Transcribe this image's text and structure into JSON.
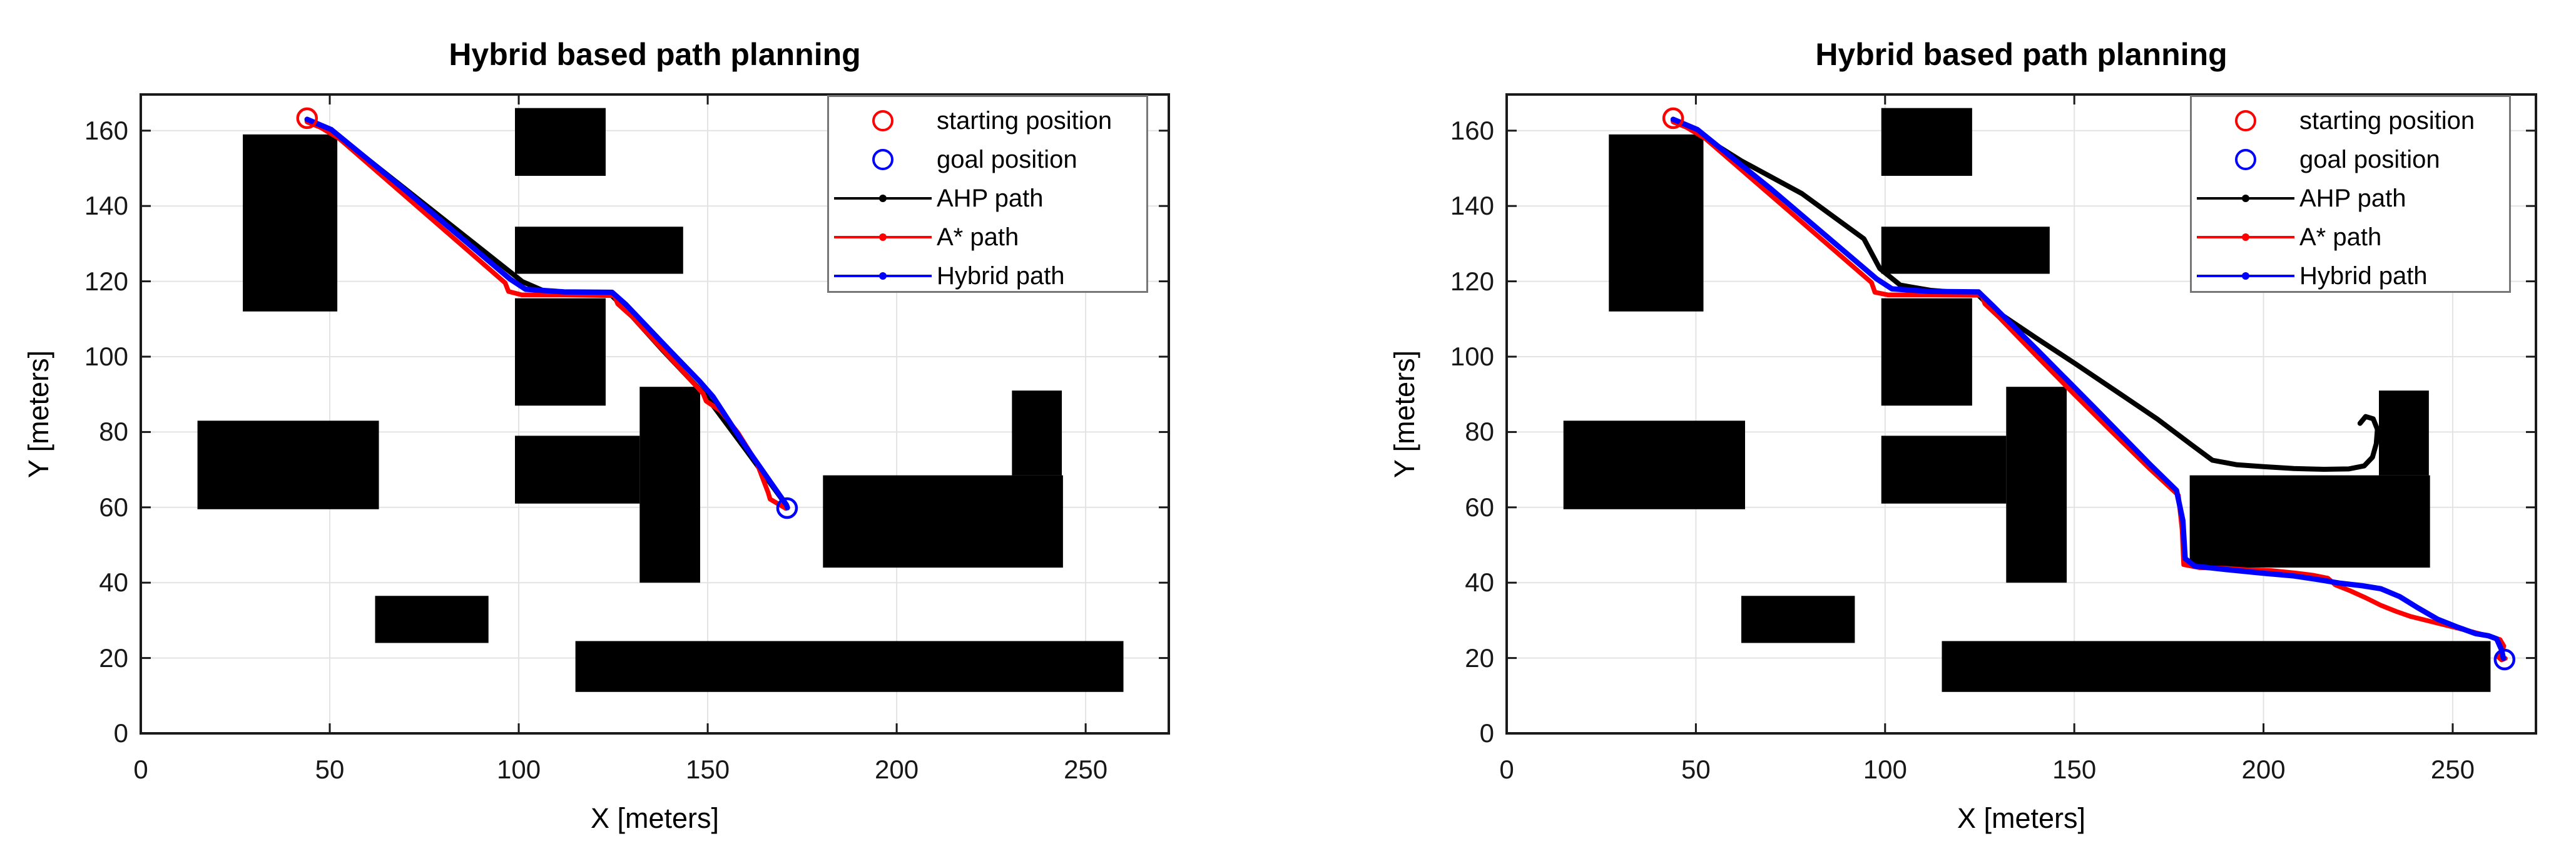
{
  "figure": {
    "background": "#ffffff",
    "axis_color": "#1a1a1a",
    "grid_color": "#e3e3e3",
    "obstacle_color": "#000000",
    "text_color": "#000000"
  },
  "chart_data": [
    {
      "type": "line",
      "title": "Hybrid based path planning",
      "xlabel": "X [meters]",
      "ylabel": "Y [meters]",
      "xlim": [
        0,
        272
      ],
      "ylim": [
        0,
        169.6
      ],
      "xticks": [
        0,
        50,
        100,
        150,
        200,
        250
      ],
      "yticks": [
        0,
        20,
        40,
        60,
        80,
        100,
        120,
        140,
        160
      ],
      "grid": true,
      "legend": {
        "position": "top-right",
        "entries": [
          {
            "label": "starting position",
            "marker": "circle",
            "color": "#ff0000"
          },
          {
            "label": "goal position",
            "marker": "circle",
            "color": "#0000ff"
          },
          {
            "label": "AHP path",
            "marker": "line-dot",
            "color": "#000000"
          },
          {
            "label": "A* path",
            "marker": "line-dot",
            "color": "#ff0000"
          },
          {
            "label": "Hybrid path",
            "marker": "line-dot",
            "color": "#0000ff"
          }
        ]
      },
      "start": {
        "x": 44,
        "y": 163.3,
        "color": "#ff0000"
      },
      "goal": {
        "x": 171,
        "y": 59.8,
        "color": "#0000ff"
      },
      "obstacles": [
        [
          27,
          112,
          25,
          47
        ],
        [
          99,
          148,
          24,
          18
        ],
        [
          99,
          122,
          44.5,
          12.5
        ],
        [
          99,
          87,
          24,
          28.5
        ],
        [
          99,
          61,
          33,
          18
        ],
        [
          132,
          40,
          16,
          52
        ],
        [
          15,
          59.5,
          48,
          23.5
        ],
        [
          62,
          24,
          30,
          12.5
        ],
        [
          115,
          11,
          145,
          13.5
        ],
        [
          180.5,
          44,
          63.5,
          24.5
        ],
        [
          230.5,
          68.5,
          13.2,
          22.5
        ]
      ],
      "series": [
        {
          "name": "AHP path",
          "color": "#000000",
          "width": 8,
          "points": [
            [
              44,
              162.6
            ],
            [
              48,
              160.8
            ],
            [
              54,
              157.2
            ],
            [
              101,
              119.9
            ],
            [
              106.5,
              117.5
            ],
            [
              115,
              117
            ],
            [
              124,
              116.8
            ],
            [
              128,
              112.9
            ],
            [
              138,
              101.8
            ],
            [
              149.5,
              89.6
            ],
            [
              160,
              75.4
            ],
            [
              171,
              60.3
            ]
          ]
        },
        {
          "name": "A* path",
          "color": "#ff0000",
          "width": 7.5,
          "points": [
            [
              44,
              162.3
            ],
            [
              47.5,
              160.9
            ],
            [
              52.5,
              157.9
            ],
            [
              96.4,
              119.6
            ],
            [
              97.3,
              117.3
            ],
            [
              100.8,
              116.4
            ],
            [
              112,
              116.4
            ],
            [
              125.3,
              116.2
            ],
            [
              126.2,
              114
            ],
            [
              130,
              110.6
            ],
            [
              148.8,
              90.2
            ],
            [
              149.6,
              88.2
            ],
            [
              153.4,
              85.6
            ],
            [
              158,
              79.8
            ],
            [
              163,
              71.8
            ],
            [
              166,
              63.9
            ],
            [
              166.5,
              62.2
            ],
            [
              170.7,
              59.7
            ]
          ]
        },
        {
          "name": "Hybrid path",
          "color": "#0000ff",
          "width": 8.5,
          "points": [
            [
              44,
              163
            ],
            [
              50.4,
              160.3
            ],
            [
              70,
              144.2
            ],
            [
              97.7,
              120.6
            ],
            [
              101.8,
              117.9
            ],
            [
              112,
              117.2
            ],
            [
              124.7,
              117.1
            ],
            [
              128.3,
              113.9
            ],
            [
              140,
              101.6
            ],
            [
              147.8,
              93.5
            ],
            [
              151.4,
              89.4
            ],
            [
              160,
              76.2
            ],
            [
              170.8,
              60.7
            ],
            [
              171.1,
              59.9
            ]
          ]
        }
      ]
    },
    {
      "type": "line",
      "title": "Hybrid based path planning",
      "xlabel": "X [meters]",
      "ylabel": "Y [meters]",
      "xlim": [
        0,
        272
      ],
      "ylim": [
        0,
        169.6
      ],
      "xticks": [
        0,
        50,
        100,
        150,
        200,
        250
      ],
      "yticks": [
        0,
        20,
        40,
        60,
        80,
        100,
        120,
        140,
        160
      ],
      "grid": true,
      "legend": {
        "position": "top-right",
        "entries": [
          {
            "label": "starting position",
            "marker": "circle",
            "color": "#ff0000"
          },
          {
            "label": "goal position",
            "marker": "circle",
            "color": "#0000ff"
          },
          {
            "label": "AHP path",
            "marker": "line-dot",
            "color": "#000000"
          },
          {
            "label": "A* path",
            "marker": "line-dot",
            "color": "#ff0000"
          },
          {
            "label": "Hybrid path",
            "marker": "line-dot",
            "color": "#0000ff"
          }
        ]
      },
      "start": {
        "x": 44,
        "y": 163.3,
        "color": "#ff0000"
      },
      "goal": {
        "x": 263.7,
        "y": 19.6,
        "color": "#0000ff"
      },
      "obstacles": [
        [
          27,
          112,
          25,
          47
        ],
        [
          99,
          148,
          24,
          18
        ],
        [
          99,
          122,
          44.5,
          12.5
        ],
        [
          99,
          87,
          24,
          28.5
        ],
        [
          99,
          61,
          33,
          18
        ],
        [
          132,
          40,
          16,
          52
        ],
        [
          15,
          59.5,
          48,
          23.5
        ],
        [
          62,
          24,
          30,
          12.5
        ],
        [
          115,
          11,
          145,
          13.5
        ],
        [
          180.5,
          44,
          63.5,
          24.5
        ],
        [
          230.5,
          68.5,
          13.2,
          22.5
        ]
      ],
      "series": [
        {
          "name": "AHP path",
          "color": "#000000",
          "width": 8,
          "points": [
            [
              44,
              162.6
            ],
            [
              48.5,
              160.5
            ],
            [
              62,
              152
            ],
            [
              78,
              143.3
            ],
            [
              94.4,
              131.3
            ],
            [
              98.6,
              123.4
            ],
            [
              104,
              119
            ],
            [
              112,
              117.6
            ],
            [
              120,
              117
            ],
            [
              124.4,
              116.6
            ],
            [
              128,
              113
            ],
            [
              140,
              104.9
            ],
            [
              150,
              98.3
            ],
            [
              162,
              90.2
            ],
            [
              172,
              83.4
            ],
            [
              181,
              76.6
            ],
            [
              186.5,
              72.5
            ],
            [
              193,
              71.3
            ],
            [
              200,
              70.8
            ],
            [
              208,
              70.3
            ],
            [
              216,
              70.1
            ],
            [
              222.5,
              70.2
            ],
            [
              226.6,
              71
            ],
            [
              228.8,
              73.3
            ],
            [
              229.8,
              76.9
            ],
            [
              230.1,
              80.7
            ],
            [
              229,
              83.5
            ],
            [
              227,
              84.1
            ],
            [
              225.5,
              82.3
            ]
          ]
        },
        {
          "name": "A* path",
          "color": "#ff0000",
          "width": 7.5,
          "points": [
            [
              44,
              162.3
            ],
            [
              47.5,
              160.9
            ],
            [
              52.5,
              157.9
            ],
            [
              96.4,
              119.7
            ],
            [
              97.3,
              117.1
            ],
            [
              100.8,
              116.4
            ],
            [
              112,
              116.4
            ],
            [
              125.5,
              116.3
            ],
            [
              126.4,
              114
            ],
            [
              130.2,
              110.4
            ],
            [
              140,
              100.2
            ],
            [
              150,
              90
            ],
            [
              160,
              80
            ],
            [
              170,
              70.2
            ],
            [
              177.5,
              63.2
            ],
            [
              178.5,
              54
            ],
            [
              178.9,
              44.8
            ],
            [
              183,
              44
            ],
            [
              190,
              43.8
            ],
            [
              196,
              43.4
            ],
            [
              202,
              43.2
            ],
            [
              208,
              42.6
            ],
            [
              213,
              42
            ],
            [
              217,
              41.2
            ],
            [
              219,
              39.4
            ],
            [
              223,
              37.8
            ],
            [
              227,
              36
            ],
            [
              231,
              34
            ],
            [
              235,
              32.4
            ],
            [
              239,
              31
            ],
            [
              243,
              30
            ],
            [
              247,
              29
            ],
            [
              251,
              28
            ],
            [
              255,
              27
            ],
            [
              258,
              26.2
            ],
            [
              260.5,
              25.5
            ],
            [
              262.5,
              24.9
            ],
            [
              263.5,
              23.2
            ],
            [
              262.9,
              21.2
            ],
            [
              261.9,
              20.4
            ],
            [
              262.9,
              19.5
            ],
            [
              263.9,
              19.9
            ]
          ]
        },
        {
          "name": "Hybrid path",
          "color": "#0000ff",
          "width": 8.5,
          "points": [
            [
              44,
              163
            ],
            [
              50.4,
              160.3
            ],
            [
              70,
              144.4
            ],
            [
              97.7,
              120.7
            ],
            [
              101.8,
              118
            ],
            [
              112,
              117.3
            ],
            [
              124.7,
              117.2
            ],
            [
              128.5,
              113.5
            ],
            [
              140,
              102
            ],
            [
              155,
              86.8
            ],
            [
              170,
              71.4
            ],
            [
              177,
              64.5
            ],
            [
              178.7,
              56.5
            ],
            [
              179.3,
              46.4
            ],
            [
              181.8,
              44.4
            ],
            [
              190,
              43.5
            ],
            [
              200,
              42.5
            ],
            [
              208,
              41.8
            ],
            [
              214,
              40.9
            ],
            [
              220,
              39.9
            ],
            [
              226,
              39.2
            ],
            [
              231,
              38.4
            ],
            [
              236,
              36.3
            ],
            [
              241,
              33.2
            ],
            [
              246,
              30.3
            ],
            [
              251,
              28.3
            ],
            [
              256,
              26.5
            ],
            [
              259.5,
              25.9
            ],
            [
              261.6,
              25.1
            ],
            [
              262.9,
              22.2
            ],
            [
              263.4,
              19.9
            ]
          ]
        }
      ]
    }
  ]
}
